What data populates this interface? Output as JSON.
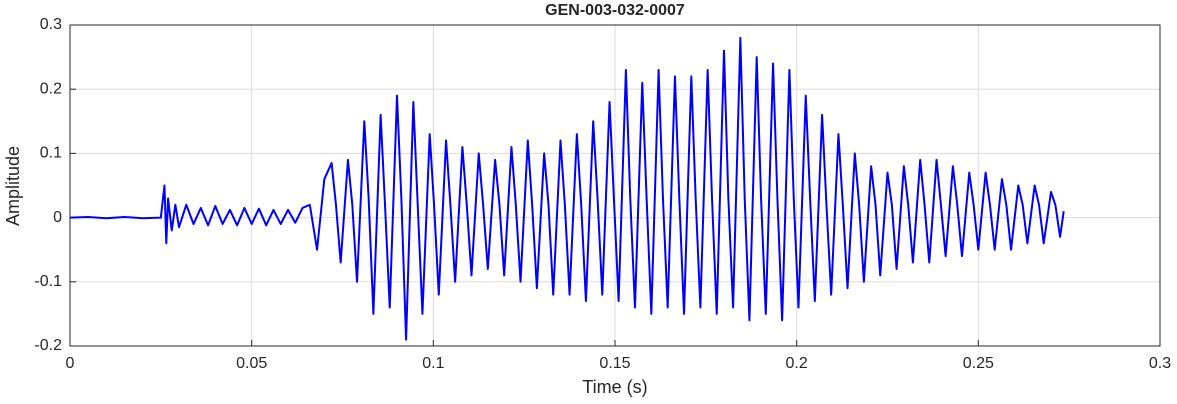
{
  "chart_data": {
    "type": "line",
    "title": "GEN-003-032-0007",
    "xlabel": "Time (s)",
    "ylabel": "Amplitude",
    "color": "#0000ff",
    "grid": true,
    "xlim": [
      0,
      0.3
    ],
    "ylim": [
      -0.2,
      0.3
    ],
    "xticks": [
      0,
      0.05,
      0.1,
      0.15,
      0.2,
      0.25,
      0.3
    ],
    "yticks": [
      -0.2,
      -0.1,
      0,
      0.1,
      0.2,
      0.3
    ],
    "x": [
      0,
      0.005,
      0.01,
      0.015,
      0.02,
      0.025,
      0.026,
      0.0265,
      0.027,
      0.028,
      0.029,
      0.03,
      0.032,
      0.034,
      0.036,
      0.038,
      0.04,
      0.042,
      0.044,
      0.046,
      0.048,
      0.05,
      0.052,
      0.054,
      0.056,
      0.058,
      0.06,
      0.062,
      0.064,
      0.066,
      0.068,
      0.07,
      0.072,
      0.0732,
      0.0745,
      0.0765,
      0.0777,
      0.079,
      0.081,
      0.0822,
      0.0835,
      0.0855,
      0.0867,
      0.088,
      0.09,
      0.0912,
      0.0925,
      0.0945,
      0.0957,
      0.097,
      0.099,
      0.1002,
      0.1015,
      0.1035,
      0.1047,
      0.106,
      0.108,
      0.1092,
      0.1105,
      0.1125,
      0.1137,
      0.115,
      0.117,
      0.1182,
      0.1195,
      0.1215,
      0.1227,
      0.124,
      0.126,
      0.1272,
      0.1285,
      0.1305,
      0.1317,
      0.133,
      0.135,
      0.1362,
      0.1375,
      0.1395,
      0.1407,
      0.142,
      0.144,
      0.1452,
      0.1465,
      0.1485,
      0.1497,
      0.151,
      0.153,
      0.1542,
      0.1555,
      0.1575,
      0.1587,
      0.16,
      0.162,
      0.1632,
      0.1645,
      0.1665,
      0.1677,
      0.169,
      0.171,
      0.1722,
      0.1735,
      0.1755,
      0.1767,
      0.178,
      0.18,
      0.1812,
      0.1825,
      0.1845,
      0.1857,
      0.187,
      0.189,
      0.1902,
      0.1915,
      0.1935,
      0.1947,
      0.196,
      0.198,
      0.1992,
      0.2005,
      0.2025,
      0.2037,
      0.205,
      0.207,
      0.2082,
      0.2095,
      0.2115,
      0.2127,
      0.214,
      0.216,
      0.2172,
      0.2185,
      0.2205,
      0.2217,
      0.223,
      0.225,
      0.2262,
      0.2275,
      0.2295,
      0.2307,
      0.232,
      0.234,
      0.2352,
      0.2365,
      0.2385,
      0.2397,
      0.241,
      0.243,
      0.2442,
      0.2455,
      0.2475,
      0.2487,
      0.25,
      0.252,
      0.2532,
      0.2545,
      0.2565,
      0.2577,
      0.259,
      0.261,
      0.2622,
      0.2635,
      0.2655,
      0.2667,
      0.268,
      0.27,
      0.2712,
      0.2725,
      0.2735
    ],
    "values": [
      0,
      0.001,
      -0.001,
      0.001,
      -0.001,
      0,
      0.05,
      -0.04,
      0.03,
      -0.02,
      0.02,
      -0.015,
      0.02,
      -0.01,
      0.015,
      -0.012,
      0.018,
      -0.01,
      0.012,
      -0.012,
      0.015,
      -0.01,
      0.014,
      -0.012,
      0.012,
      -0.01,
      0.012,
      -0.008,
      0.015,
      0.02,
      -0.05,
      0.06,
      0.085,
      0.02,
      -0.07,
      0.09,
      0.02,
      -0.1,
      0.15,
      0.03,
      -0.15,
      0.16,
      0.02,
      -0.14,
      0.19,
      0.03,
      -0.19,
      0.18,
      0.02,
      -0.15,
      0.13,
      0.02,
      -0.12,
      0.12,
      0.02,
      -0.1,
      0.11,
      0.02,
      -0.09,
      0.1,
      0.02,
      -0.08,
      0.09,
      0.02,
      -0.09,
      0.11,
      0.02,
      -0.1,
      0.12,
      0.02,
      -0.11,
      0.1,
      0.02,
      -0.12,
      0.12,
      0.02,
      -0.12,
      0.13,
      0.02,
      -0.13,
      0.15,
      0.03,
      -0.12,
      0.18,
      0.03,
      -0.13,
      0.23,
      0.03,
      -0.14,
      0.21,
      0.03,
      -0.15,
      0.23,
      0.03,
      -0.14,
      0.22,
      0.03,
      -0.15,
      0.22,
      0.03,
      -0.14,
      0.23,
      0.03,
      -0.15,
      0.26,
      0.03,
      -0.14,
      0.28,
      0.03,
      -0.16,
      0.25,
      0.03,
      -0.15,
      0.24,
      0.03,
      -0.16,
      0.23,
      0.03,
      -0.14,
      0.19,
      0.03,
      -0.13,
      0.16,
      0.02,
      -0.12,
      0.13,
      0.02,
      -0.11,
      0.1,
      0.02,
      -0.1,
      0.08,
      0.02,
      -0.09,
      0.07,
      0.02,
      -0.08,
      0.08,
      0.02,
      -0.07,
      0.09,
      0.02,
      -0.07,
      0.09,
      0.02,
      -0.06,
      0.08,
      0.02,
      -0.06,
      0.07,
      0.02,
      -0.05,
      0.07,
      0.02,
      -0.05,
      0.06,
      0.02,
      -0.05,
      0.05,
      0.02,
      -0.04,
      0.05,
      0.02,
      -0.04,
      0.04,
      0.02,
      -0.03,
      0.01
    ]
  }
}
